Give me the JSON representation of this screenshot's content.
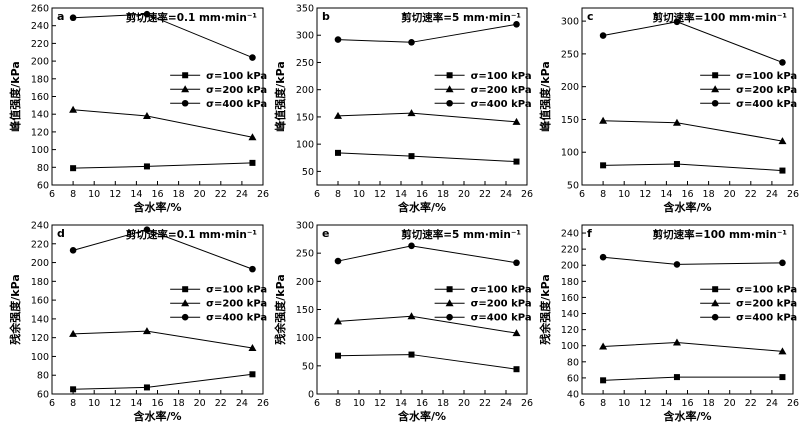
{
  "chart_data": [
    {
      "type": "line",
      "panel_letter": "a",
      "title": "剪切速率=0.1 mm·min⁻¹",
      "xlabel": "含水率/%",
      "ylabel": "峰值强度/kPa",
      "xlim": [
        6,
        26
      ],
      "ylim": [
        60,
        260
      ],
      "xticks": [
        6,
        8,
        10,
        12,
        14,
        16,
        18,
        20,
        22,
        24,
        26
      ],
      "yticks": [
        60,
        80,
        100,
        120,
        140,
        160,
        180,
        200,
        220,
        240,
        260
      ],
      "x": [
        8,
        15,
        25
      ],
      "legend_placement": "right-middle",
      "series": [
        {
          "name": "σ=100 kPa",
          "marker": "square",
          "values": [
            79,
            81,
            85
          ]
        },
        {
          "name": "σ=200 kPa",
          "marker": "triangle",
          "values": [
            145,
            138,
            114
          ]
        },
        {
          "name": "σ=400 kPa",
          "marker": "circle",
          "values": [
            249,
            253,
            204
          ]
        }
      ]
    },
    {
      "type": "line",
      "panel_letter": "b",
      "title": "剪切速率=5 mm·min⁻¹",
      "xlabel": "含水率/%",
      "ylabel": "峰值强度/kPa",
      "xlim": [
        6,
        26
      ],
      "ylim": [
        25,
        350
      ],
      "xticks": [
        6,
        8,
        10,
        12,
        14,
        16,
        18,
        20,
        22,
        24,
        26
      ],
      "yticks": [
        50,
        100,
        150,
        200,
        250,
        300,
        350
      ],
      "x": [
        8,
        15,
        25
      ],
      "legend_placement": "right-middle",
      "series": [
        {
          "name": "σ=100 kPa",
          "marker": "square",
          "values": [
            84,
            78,
            68
          ]
        },
        {
          "name": "σ=200 kPa",
          "marker": "triangle",
          "values": [
            152,
            157,
            141
          ]
        },
        {
          "name": "σ=400 kPa",
          "marker": "circle",
          "values": [
            292,
            287,
            320
          ]
        }
      ]
    },
    {
      "type": "line",
      "panel_letter": "c",
      "title": "剪切速率=100 mm·min⁻¹",
      "xlabel": "含水率/%",
      "ylabel": "峰值强度/kPa",
      "xlim": [
        6,
        26
      ],
      "ylim": [
        50,
        320
      ],
      "xticks": [
        6,
        8,
        10,
        12,
        14,
        16,
        18,
        20,
        22,
        24,
        26
      ],
      "yticks": [
        50,
        100,
        150,
        200,
        250,
        300
      ],
      "x": [
        8,
        15,
        25
      ],
      "legend_placement": "right-middle",
      "series": [
        {
          "name": "σ=100 kPa",
          "marker": "square",
          "values": [
            80,
            82,
            72
          ]
        },
        {
          "name": "σ=200 kPa",
          "marker": "triangle",
          "values": [
            148,
            145,
            117
          ]
        },
        {
          "name": "σ=400 kPa",
          "marker": "circle",
          "values": [
            278,
            299,
            237
          ]
        }
      ]
    },
    {
      "type": "line",
      "panel_letter": "d",
      "title": "剪切速率=0.1 mm·min⁻¹",
      "xlabel": "含水率/%",
      "ylabel": "残余强度/kPa",
      "xlim": [
        6,
        26
      ],
      "ylim": [
        60,
        240
      ],
      "xticks": [
        6,
        8,
        10,
        12,
        14,
        16,
        18,
        20,
        22,
        24,
        26
      ],
      "yticks": [
        60,
        80,
        100,
        120,
        140,
        160,
        180,
        200,
        220,
        240
      ],
      "x": [
        8,
        15,
        25
      ],
      "legend_placement": "right-middle",
      "series": [
        {
          "name": "σ=100 kPa",
          "marker": "square",
          "values": [
            65,
            67,
            81
          ]
        },
        {
          "name": "σ=200 kPa",
          "marker": "triangle",
          "values": [
            124,
            127,
            109
          ]
        },
        {
          "name": "σ=400 kPa",
          "marker": "circle",
          "values": [
            213,
            235,
            193
          ]
        }
      ]
    },
    {
      "type": "line",
      "panel_letter": "e",
      "title": "剪切速率=5 mm·min⁻¹",
      "xlabel": "含水率/%",
      "ylabel": "残余强度/kPa",
      "xlim": [
        6,
        26
      ],
      "ylim": [
        0,
        300
      ],
      "xticks": [
        6,
        8,
        10,
        12,
        14,
        16,
        18,
        20,
        22,
        24,
        26
      ],
      "yticks": [
        0,
        50,
        100,
        150,
        200,
        250,
        300
      ],
      "x": [
        8,
        15,
        25
      ],
      "legend_placement": "right-middle",
      "series": [
        {
          "name": "σ=100 kPa",
          "marker": "square",
          "values": [
            68,
            70,
            44
          ]
        },
        {
          "name": "σ=200 kPa",
          "marker": "triangle",
          "values": [
            129,
            138,
            108
          ]
        },
        {
          "name": "σ=400 kPa",
          "marker": "circle",
          "values": [
            236,
            263,
            233
          ]
        }
      ]
    },
    {
      "type": "line",
      "panel_letter": "f",
      "title": "剪切速率=100 mm·min⁻¹",
      "xlabel": "含水率/%",
      "ylabel": "残余强度/kPa",
      "xlim": [
        6,
        26
      ],
      "ylim": [
        40,
        250
      ],
      "xticks": [
        6,
        8,
        10,
        12,
        14,
        16,
        18,
        20,
        22,
        24,
        26
      ],
      "yticks": [
        40,
        60,
        80,
        100,
        120,
        140,
        160,
        180,
        200,
        220,
        240
      ],
      "x": [
        8,
        15,
        25
      ],
      "legend_placement": "right-middle",
      "series": [
        {
          "name": "σ=100 kPa",
          "marker": "square",
          "values": [
            57,
            61,
            61
          ]
        },
        {
          "name": "σ=200 kPa",
          "marker": "triangle",
          "values": [
            99,
            104,
            93
          ]
        },
        {
          "name": "σ=400 kPa",
          "marker": "circle",
          "values": [
            210,
            201,
            203
          ]
        }
      ]
    }
  ]
}
